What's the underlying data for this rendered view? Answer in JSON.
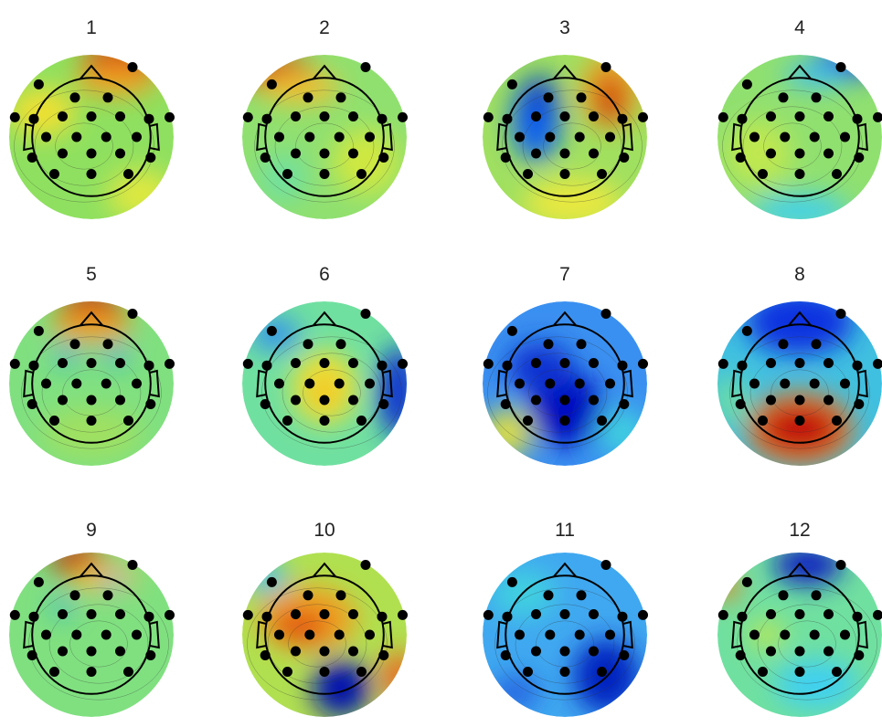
{
  "maps": [
    {
      "label": "1"
    },
    {
      "label": "2"
    },
    {
      "label": "3"
    },
    {
      "label": "4"
    },
    {
      "label": "5"
    },
    {
      "label": "6"
    },
    {
      "label": "7"
    },
    {
      "label": "8"
    },
    {
      "label": "9"
    },
    {
      "label": "10"
    },
    {
      "label": "11"
    },
    {
      "label": "12"
    }
  ]
}
